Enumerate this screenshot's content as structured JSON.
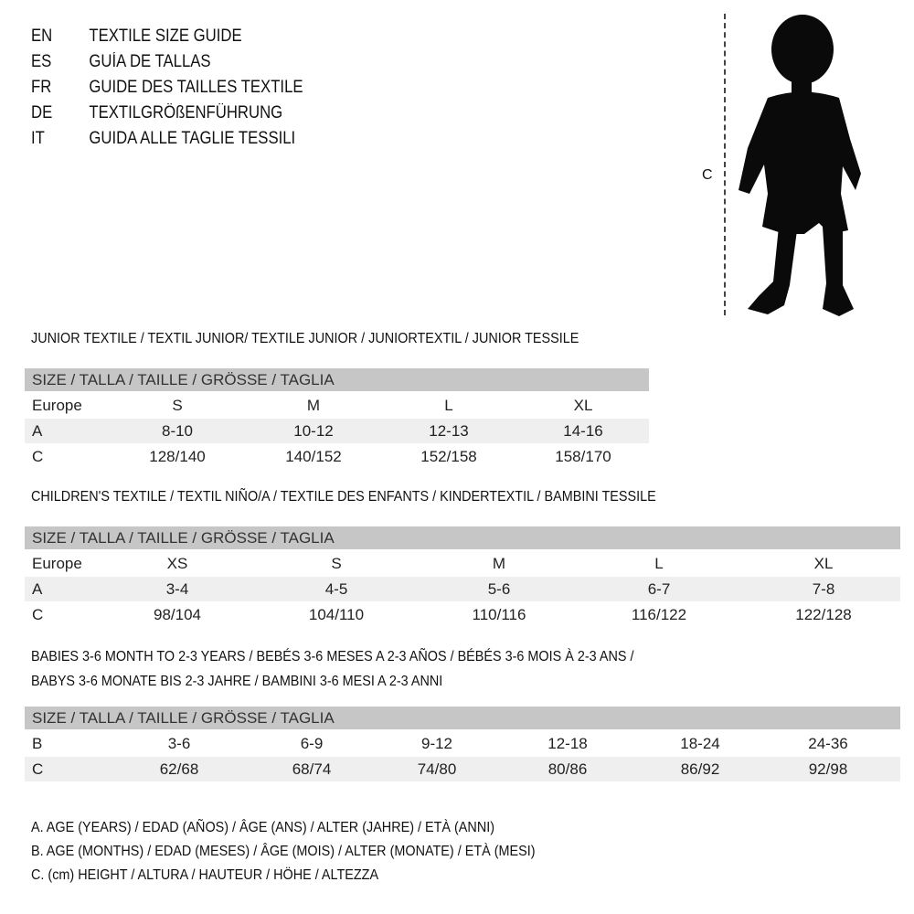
{
  "languages": [
    {
      "code": "EN",
      "title": "TEXTILE SIZE GUIDE"
    },
    {
      "code": "ES",
      "title": "GUÍA DE TALLAS"
    },
    {
      "code": "FR",
      "title": "GUIDE DES TAILLES TEXTILE"
    },
    {
      "code": "DE",
      "title": "TEXTILGRÖßENFÜHRUNG"
    },
    {
      "code": "IT",
      "title": "GUIDA ALLE TAGLIE TESSILI"
    }
  ],
  "figure": {
    "measure_label": "C"
  },
  "junior": {
    "title": "JUNIOR TEXTILE / TEXTIL JUNIOR/ TEXTILE JUNIOR / JUNIORTEXTIL / JUNIOR TESSILE",
    "header": "SIZE / TALLA / TAILLE / GRÖSSE / TAGLIA",
    "rows": [
      {
        "label": "Europe",
        "values": [
          "S",
          "M",
          "L",
          "XL"
        ]
      },
      {
        "label": "A",
        "values": [
          "8-10",
          "10-12",
          "12-13",
          "14-16"
        ]
      },
      {
        "label": "C",
        "values": [
          "128/140",
          "140/152",
          "152/158",
          "158/170"
        ]
      }
    ]
  },
  "children": {
    "title": "CHILDREN'S TEXTILE / TEXTIL NIÑO/A / TEXTILE DES ENFANTS / KINDERTEXTIL / BAMBINI TESSILE",
    "header": "SIZE / TALLA / TAILLE / GRÖSSE / TAGLIA",
    "rows": [
      {
        "label": "Europe",
        "values": [
          "XS",
          "S",
          "M",
          "L",
          "XL"
        ]
      },
      {
        "label": "A",
        "values": [
          "3-4",
          "4-5",
          "5-6",
          "6-7",
          "7-8"
        ]
      },
      {
        "label": "C",
        "values": [
          "98/104",
          "104/110",
          "110/116",
          "116/122",
          "122/128"
        ]
      }
    ]
  },
  "babies": {
    "title_line1": "BABIES 3-6 MONTH TO 2-3 YEARS / BEBÉS 3-6 MESES A 2-3 AÑOS / BÉBÉS 3-6 MOIS À 2-3 ANS /",
    "title_line2": "BABYS 3-6 MONATE BIS 2-3 JAHRE / BAMBINI 3-6 MESI A 2-3 ANNI",
    "header": "SIZE / TALLA / TAILLE / GRÖSSE / TAGLIA",
    "rows": [
      {
        "label": "B",
        "values": [
          "3-6",
          "6-9",
          "9-12",
          "12-18",
          "18-24",
          "24-36"
        ]
      },
      {
        "label": "C",
        "values": [
          "62/68",
          "68/74",
          "74/80",
          "80/86",
          "86/92",
          "92/98"
        ]
      }
    ]
  },
  "legend": [
    "A. AGE (YEARS) / EDAD (AÑOS) / ÂGE (ANS) / ALTER (JAHRE) / ETÀ (ANNI)",
    "B. AGE (MONTHS) / EDAD (MESES) / ÂGE (MOIS) / ALTER (MONATE) / ETÀ (MESI)",
    "C. (cm) HEIGHT / ALTURA / HAUTEUR / HÖHE / ALTEZZA"
  ]
}
